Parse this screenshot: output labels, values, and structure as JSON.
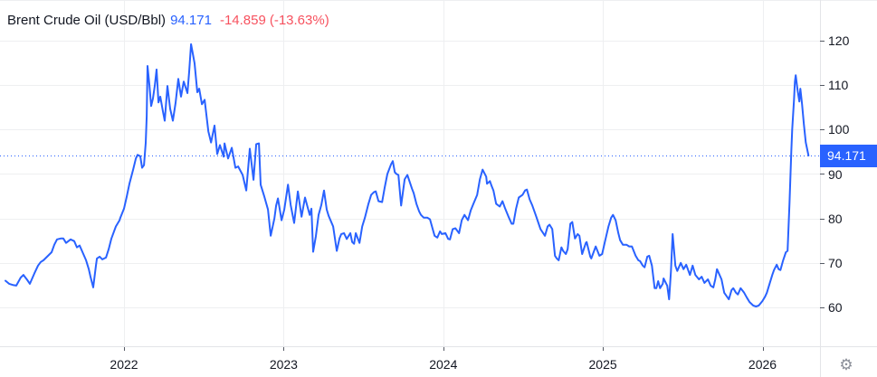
{
  "header": {
    "symbol_title": "Brent Crude Oil (USD/Bbl)",
    "last_price": "94.171",
    "change": "-14.859",
    "change_pct": "(-13.63%)"
  },
  "price_axis": {
    "labels": [
      "120",
      "110",
      "100",
      "90",
      "80",
      "70",
      "60"
    ],
    "current_price_label": "94.171"
  },
  "time_axis": {
    "labels": [
      "2022",
      "2023",
      "2024",
      "2025",
      "2026"
    ]
  },
  "icons": {
    "settings_glyph": "⚙"
  },
  "colors": {
    "line": "#2962FF",
    "accent_blue": "#2962FF",
    "negative_red": "#F7525F",
    "text_dark": "#131722",
    "grid": "#EEEFF1",
    "axis_border": "#E3E4E8",
    "tick": "#555A64",
    "label_bg": "#2962FF",
    "label_text": "#FFFFFF"
  },
  "chart_data": {
    "type": "line",
    "title": "Brent Crude Oil (USD/Bbl)",
    "series_name": "Brent Crude Oil",
    "unit": "USD/Bbl",
    "xlabel": "",
    "ylabel": "USD/Bbl",
    "grid": true,
    "legend": "none",
    "x_ticks": [
      2022,
      2023,
      2024,
      2025,
      2026
    ],
    "y_ticks": [
      120,
      110,
      100,
      90,
      80,
      70,
      60
    ],
    "xlim": [
      2021.223,
      2026.36
    ],
    "ylim": [
      51.25,
      129.15
    ],
    "current_price": 94.171,
    "points": [
      [
        2021.257,
        66.0
      ],
      [
        2021.28,
        65.3
      ],
      [
        2021.308,
        65.0
      ],
      [
        2021.325,
        64.9
      ],
      [
        2021.353,
        66.7
      ],
      [
        2021.37,
        67.3
      ],
      [
        2021.393,
        66.2
      ],
      [
        2021.41,
        65.3
      ],
      [
        2021.438,
        67.6
      ],
      [
        2021.461,
        69.4
      ],
      [
        2021.478,
        70.2
      ],
      [
        2021.495,
        70.6
      ],
      [
        2021.524,
        71.6
      ],
      [
        2021.546,
        72.4
      ],
      [
        2021.563,
        74.1
      ],
      [
        2021.58,
        75.3
      ],
      [
        2021.603,
        75.5
      ],
      [
        2021.62,
        75.5
      ],
      [
        2021.637,
        74.5
      ],
      [
        2021.665,
        75.3
      ],
      [
        2021.688,
        74.9
      ],
      [
        2021.705,
        73.5
      ],
      [
        2021.722,
        73.9
      ],
      [
        2021.745,
        72.0
      ],
      [
        2021.762,
        70.6
      ],
      [
        2021.779,
        68.6
      ],
      [
        2021.79,
        66.9
      ],
      [
        2021.807,
        64.5
      ],
      [
        2021.824,
        69.4
      ],
      [
        2021.83,
        71.0
      ],
      [
        2021.847,
        71.4
      ],
      [
        2021.864,
        70.8
      ],
      [
        2021.887,
        71.2
      ],
      [
        2021.904,
        73.1
      ],
      [
        2021.921,
        75.5
      ],
      [
        2021.949,
        78.2
      ],
      [
        2021.972,
        79.6
      ],
      [
        2021.977,
        80.2
      ],
      [
        2022.0,
        82.2
      ],
      [
        2022.017,
        84.9
      ],
      [
        2022.034,
        87.8
      ],
      [
        2022.057,
        91.0
      ],
      [
        2022.074,
        93.5
      ],
      [
        2022.085,
        94.3
      ],
      [
        2022.102,
        94.0
      ],
      [
        2022.113,
        91.4
      ],
      [
        2022.125,
        92.0
      ],
      [
        2022.136,
        97.0
      ],
      [
        2022.142,
        103.0
      ],
      [
        2022.147,
        114.3
      ],
      [
        2022.159,
        110.0
      ],
      [
        2022.17,
        105.3
      ],
      [
        2022.181,
        107.0
      ],
      [
        2022.193,
        110.0
      ],
      [
        2022.204,
        113.5
      ],
      [
        2022.216,
        106.1
      ],
      [
        2022.227,
        107.4
      ],
      [
        2022.244,
        104.0
      ],
      [
        2022.255,
        102.0
      ],
      [
        2022.272,
        109.8
      ],
      [
        2022.289,
        104.7
      ],
      [
        2022.306,
        102.0
      ],
      [
        2022.323,
        106.0
      ],
      [
        2022.34,
        111.4
      ],
      [
        2022.357,
        107.4
      ],
      [
        2022.374,
        110.8
      ],
      [
        2022.397,
        108.2
      ],
      [
        2022.408,
        113.0
      ],
      [
        2022.42,
        119.2
      ],
      [
        2022.431,
        117.0
      ],
      [
        2022.442,
        114.9
      ],
      [
        2022.459,
        108.4
      ],
      [
        2022.471,
        109.2
      ],
      [
        2022.488,
        105.7
      ],
      [
        2022.505,
        106.7
      ],
      [
        2022.528,
        99.6
      ],
      [
        2022.545,
        97.1
      ],
      [
        2022.567,
        100.9
      ],
      [
        2022.584,
        94.5
      ],
      [
        2022.601,
        96.5
      ],
      [
        2022.624,
        93.9
      ],
      [
        2022.63,
        96.9
      ],
      [
        2022.652,
        93.5
      ],
      [
        2022.675,
        95.9
      ],
      [
        2022.698,
        91.4
      ],
      [
        2022.715,
        91.7
      ],
      [
        2022.743,
        89.8
      ],
      [
        2022.766,
        86.3
      ],
      [
        2022.788,
        95.7
      ],
      [
        2022.811,
        88.7
      ],
      [
        2022.828,
        96.7
      ],
      [
        2022.845,
        96.9
      ],
      [
        2022.856,
        87.6
      ],
      [
        2022.879,
        84.9
      ],
      [
        2022.902,
        82.0
      ],
      [
        2022.919,
        76.1
      ],
      [
        2022.942,
        80.0
      ],
      [
        2022.953,
        82.9
      ],
      [
        2022.964,
        84.5
      ],
      [
        2022.987,
        79.6
      ],
      [
        2023.004,
        82.0
      ],
      [
        2023.027,
        87.6
      ],
      [
        2023.044,
        83.0
      ],
      [
        2023.066,
        79.0
      ],
      [
        2023.089,
        86.1
      ],
      [
        2023.112,
        80.4
      ],
      [
        2023.134,
        84.7
      ],
      [
        2023.163,
        80.8
      ],
      [
        2023.174,
        82.2
      ],
      [
        2023.185,
        72.5
      ],
      [
        2023.202,
        76.0
      ],
      [
        2023.219,
        80.8
      ],
      [
        2023.236,
        83.0
      ],
      [
        2023.253,
        86.3
      ],
      [
        2023.27,
        82.0
      ],
      [
        2023.282,
        80.6
      ],
      [
        2023.31,
        78.2
      ],
      [
        2023.333,
        72.7
      ],
      [
        2023.35,
        75.5
      ],
      [
        2023.361,
        76.5
      ],
      [
        2023.378,
        76.7
      ],
      [
        2023.395,
        75.4
      ],
      [
        2023.418,
        76.7
      ],
      [
        2023.429,
        74.7
      ],
      [
        2023.441,
        74.3
      ],
      [
        2023.452,
        76.7
      ],
      [
        2023.475,
        74.5
      ],
      [
        2023.492,
        78.2
      ],
      [
        2023.509,
        80.2
      ],
      [
        2023.531,
        83.3
      ],
      [
        2023.548,
        85.3
      ],
      [
        2023.565,
        85.9
      ],
      [
        2023.577,
        86.1
      ],
      [
        2023.594,
        83.9
      ],
      [
        2023.617,
        83.7
      ],
      [
        2023.633,
        86.9
      ],
      [
        2023.65,
        90.0
      ],
      [
        2023.673,
        92.2
      ],
      [
        2023.684,
        92.9
      ],
      [
        2023.696,
        90.4
      ],
      [
        2023.707,
        90.0
      ],
      [
        2023.719,
        89.8
      ],
      [
        2023.736,
        82.9
      ],
      [
        2023.758,
        88.8
      ],
      [
        2023.775,
        89.8
      ],
      [
        2023.804,
        86.7
      ],
      [
        2023.815,
        85.7
      ],
      [
        2023.832,
        83.3
      ],
      [
        2023.849,
        81.6
      ],
      [
        2023.86,
        80.8
      ],
      [
        2023.877,
        80.2
      ],
      [
        2023.9,
        80.2
      ],
      [
        2023.917,
        79.8
      ],
      [
        2023.934,
        77.6
      ],
      [
        2023.946,
        76.1
      ],
      [
        2023.963,
        75.7
      ],
      [
        2023.98,
        77.1
      ],
      [
        2023.991,
        76.5
      ],
      [
        2024.014,
        76.7
      ],
      [
        2024.031,
        75.4
      ],
      [
        2024.042,
        75.3
      ],
      [
        2024.059,
        77.6
      ],
      [
        2024.076,
        77.8
      ],
      [
        2024.099,
        76.7
      ],
      [
        2024.116,
        79.6
      ],
      [
        2024.133,
        80.8
      ],
      [
        2024.155,
        79.6
      ],
      [
        2024.172,
        81.8
      ],
      [
        2024.189,
        83.3
      ],
      [
        2024.212,
        85.3
      ],
      [
        2024.229,
        88.8
      ],
      [
        2024.246,
        91.0
      ],
      [
        2024.269,
        89.4
      ],
      [
        2024.274,
        87.8
      ],
      [
        2024.292,
        88.4
      ],
      [
        2024.303,
        87.3
      ],
      [
        2024.314,
        86.3
      ],
      [
        2024.331,
        83.3
      ],
      [
        2024.354,
        82.7
      ],
      [
        2024.371,
        83.9
      ],
      [
        2024.388,
        82.2
      ],
      [
        2024.411,
        80.2
      ],
      [
        2024.428,
        78.8
      ],
      [
        2024.439,
        78.8
      ],
      [
        2024.456,
        82.2
      ],
      [
        2024.473,
        84.7
      ],
      [
        2024.496,
        85.3
      ],
      [
        2024.512,
        86.3
      ],
      [
        2024.524,
        86.5
      ],
      [
        2024.541,
        84.3
      ],
      [
        2024.558,
        82.9
      ],
      [
        2024.581,
        80.6
      ],
      [
        2024.598,
        78.8
      ],
      [
        2024.609,
        77.6
      ],
      [
        2024.626,
        76.7
      ],
      [
        2024.637,
        76.1
      ],
      [
        2024.654,
        78.2
      ],
      [
        2024.666,
        78.6
      ],
      [
        2024.683,
        77.6
      ],
      [
        2024.7,
        71.6
      ],
      [
        2024.711,
        71.0
      ],
      [
        2024.723,
        70.6
      ],
      [
        2024.74,
        73.5
      ],
      [
        2024.751,
        72.7
      ],
      [
        2024.768,
        72.0
      ],
      [
        2024.779,
        73.1
      ],
      [
        2024.796,
        78.8
      ],
      [
        2024.808,
        79.2
      ],
      [
        2024.825,
        75.5
      ],
      [
        2024.842,
        76.5
      ],
      [
        2024.853,
        76.1
      ],
      [
        2024.87,
        72.0
      ],
      [
        2024.893,
        74.5
      ],
      [
        2024.898,
        74.7
      ],
      [
        2024.921,
        71.4
      ],
      [
        2024.927,
        71.0
      ],
      [
        2024.949,
        73.1
      ],
      [
        2024.955,
        73.7
      ],
      [
        2024.978,
        71.6
      ],
      [
        2024.995,
        72.0
      ],
      [
        2025.012,
        74.7
      ],
      [
        2025.035,
        78.2
      ],
      [
        2025.052,
        80.2
      ],
      [
        2025.063,
        80.8
      ],
      [
        2025.08,
        79.6
      ],
      [
        2025.097,
        76.7
      ],
      [
        2025.108,
        75.1
      ],
      [
        2025.125,
        74.1
      ],
      [
        2025.148,
        74.1
      ],
      [
        2025.165,
        73.7
      ],
      [
        2025.182,
        73.7
      ],
      [
        2025.205,
        71.6
      ],
      [
        2025.222,
        70.6
      ],
      [
        2025.233,
        70.4
      ],
      [
        2025.25,
        69.4
      ],
      [
        2025.261,
        69.0
      ],
      [
        2025.278,
        71.4
      ],
      [
        2025.29,
        71.6
      ],
      [
        2025.307,
        69.4
      ],
      [
        2025.324,
        64.3
      ],
      [
        2025.335,
        64.3
      ],
      [
        2025.346,
        65.9
      ],
      [
        2025.358,
        64.3
      ],
      [
        2025.375,
        65.3
      ],
      [
        2025.38,
        66.5
      ],
      [
        2025.403,
        64.9
      ],
      [
        2025.415,
        61.8
      ],
      [
        2025.426,
        68.0
      ],
      [
        2025.437,
        76.5
      ],
      [
        2025.454,
        69.4
      ],
      [
        2025.466,
        68.2
      ],
      [
        2025.488,
        70.0
      ],
      [
        2025.505,
        68.6
      ],
      [
        2025.522,
        69.6
      ],
      [
        2025.545,
        67.3
      ],
      [
        2025.562,
        69.4
      ],
      [
        2025.579,
        67.3
      ],
      [
        2025.602,
        66.3
      ],
      [
        2025.619,
        66.9
      ],
      [
        2025.636,
        65.5
      ],
      [
        2025.658,
        66.3
      ],
      [
        2025.675,
        64.9
      ],
      [
        2025.692,
        64.5
      ],
      [
        2025.704,
        66.3
      ],
      [
        2025.715,
        68.6
      ],
      [
        2025.743,
        66.3
      ],
      [
        2025.76,
        63.3
      ],
      [
        2025.789,
        61.8
      ],
      [
        2025.806,
        63.9
      ],
      [
        2025.817,
        64.3
      ],
      [
        2025.834,
        63.3
      ],
      [
        2025.846,
        62.9
      ],
      [
        2025.863,
        64.3
      ],
      [
        2025.885,
        63.3
      ],
      [
        2025.902,
        62.2
      ],
      [
        2025.919,
        61.2
      ],
      [
        2025.942,
        60.4
      ],
      [
        2025.959,
        60.2
      ],
      [
        2025.976,
        60.4
      ],
      [
        2025.999,
        61.4
      ],
      [
        2026.016,
        62.4
      ],
      [
        2026.027,
        63.3
      ],
      [
        2026.044,
        65.3
      ],
      [
        2026.061,
        67.3
      ],
      [
        2026.072,
        68.4
      ],
      [
        2026.089,
        69.6
      ],
      [
        2026.101,
        68.6
      ],
      [
        2026.112,
        68.4
      ],
      [
        2026.129,
        70.6
      ],
      [
        2026.146,
        72.4
      ],
      [
        2026.157,
        72.7
      ],
      [
        2026.169,
        83.3
      ],
      [
        2026.18,
        95.0
      ],
      [
        2026.186,
        100.0
      ],
      [
        2026.197,
        106.7
      ],
      [
        2026.203,
        110.8
      ],
      [
        2026.208,
        112.2
      ],
      [
        2026.22,
        108.8
      ],
      [
        2026.231,
        106.3
      ],
      [
        2026.237,
        109.2
      ],
      [
        2026.248,
        105.7
      ],
      [
        2026.259,
        101.2
      ],
      [
        2026.271,
        97.1
      ],
      [
        2026.288,
        94.171
      ]
    ]
  }
}
